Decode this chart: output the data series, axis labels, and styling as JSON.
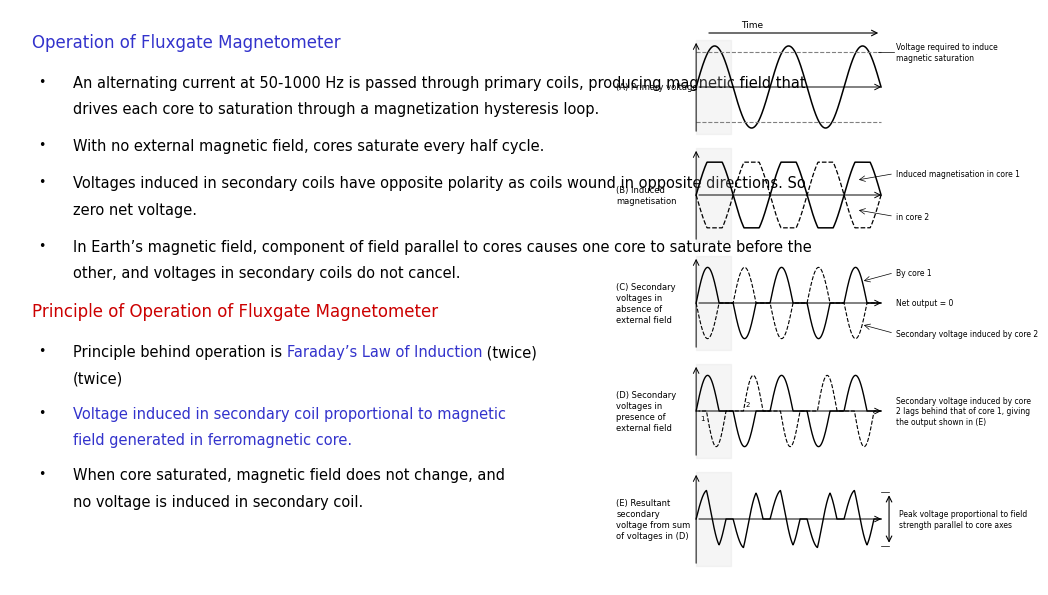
{
  "title": "Operation of Fluxgate Magnetometer",
  "title_color": "#3333cc",
  "bg_color": "#ffffff",
  "bullets_section1": [
    [
      "An alternating current at 50-1000 Hz is passed through primary coils, producing magnetic field that",
      "drives each core to saturation through a magnetization hysteresis loop."
    ],
    [
      "With no external magnetic field, cores saturate every half cycle."
    ],
    [
      "Voltages induced in secondary coils have opposite polarity as coils wound in opposite directions. So",
      "zero net voltage."
    ],
    [
      "In Earth’s magnetic field, component of field parallel to cores causes one core to saturate before the",
      "other, and voltages in secondary coils do not cancel."
    ]
  ],
  "subtitle": "Principle of Operation of Fluxgate Magnetometer",
  "subtitle_color": "#cc0000",
  "bullet2_line1_parts": [
    "Principle behind operation is ",
    "Faraday’s Law of Induction",
    " (twice)"
  ],
  "bullet2_line1_colors": [
    "black",
    "#3333cc",
    "black"
  ],
  "bullet2_line2": [
    "Voltage induced in secondary coil proportional to magnetic",
    "field generated in ferromagnetic core."
  ],
  "bullet2_line2_color": "#3333cc",
  "bullet2_line3": [
    "When core saturated, magnetic field does not change, and",
    "no voltage is induced in secondary coil."
  ],
  "bullet2_line3_color": "black",
  "diagram_labels_left": [
    "(A) Primary voltage",
    "(B) Induced\nmagnetisation",
    "(C) Secondary\nvoltages in\nabsence of\nexternal field",
    "(D) Secondary\nvoltages in\npresence of\nexternal field",
    "(E) Resultant\nsecondary\nvoltage from sum\nof voltages in (D)"
  ],
  "diagram_annot_A": "Voltage required to induce\nmagnetic saturation",
  "diagram_annot_B1": "Induced magnetisation in core 1",
  "diagram_annot_B2": "in core 2",
  "diagram_annot_C1": "By core 1",
  "diagram_annot_C2": "Net output = 0",
  "diagram_annot_C3": "Secondary voltage induced by core 2",
  "diagram_annot_D": "Secondary voltage induced by core\n2 lags behind that of core 1, giving\nthe output shown in (E)",
  "diagram_annot_E": "Peak voltage proportional to field\nstrength parallel to core axes",
  "time_label": "Time",
  "font_size_title": 12,
  "font_size_bullet": 10.5,
  "font_size_diagram_label": 6.0,
  "font_size_diagram_annot": 5.5
}
